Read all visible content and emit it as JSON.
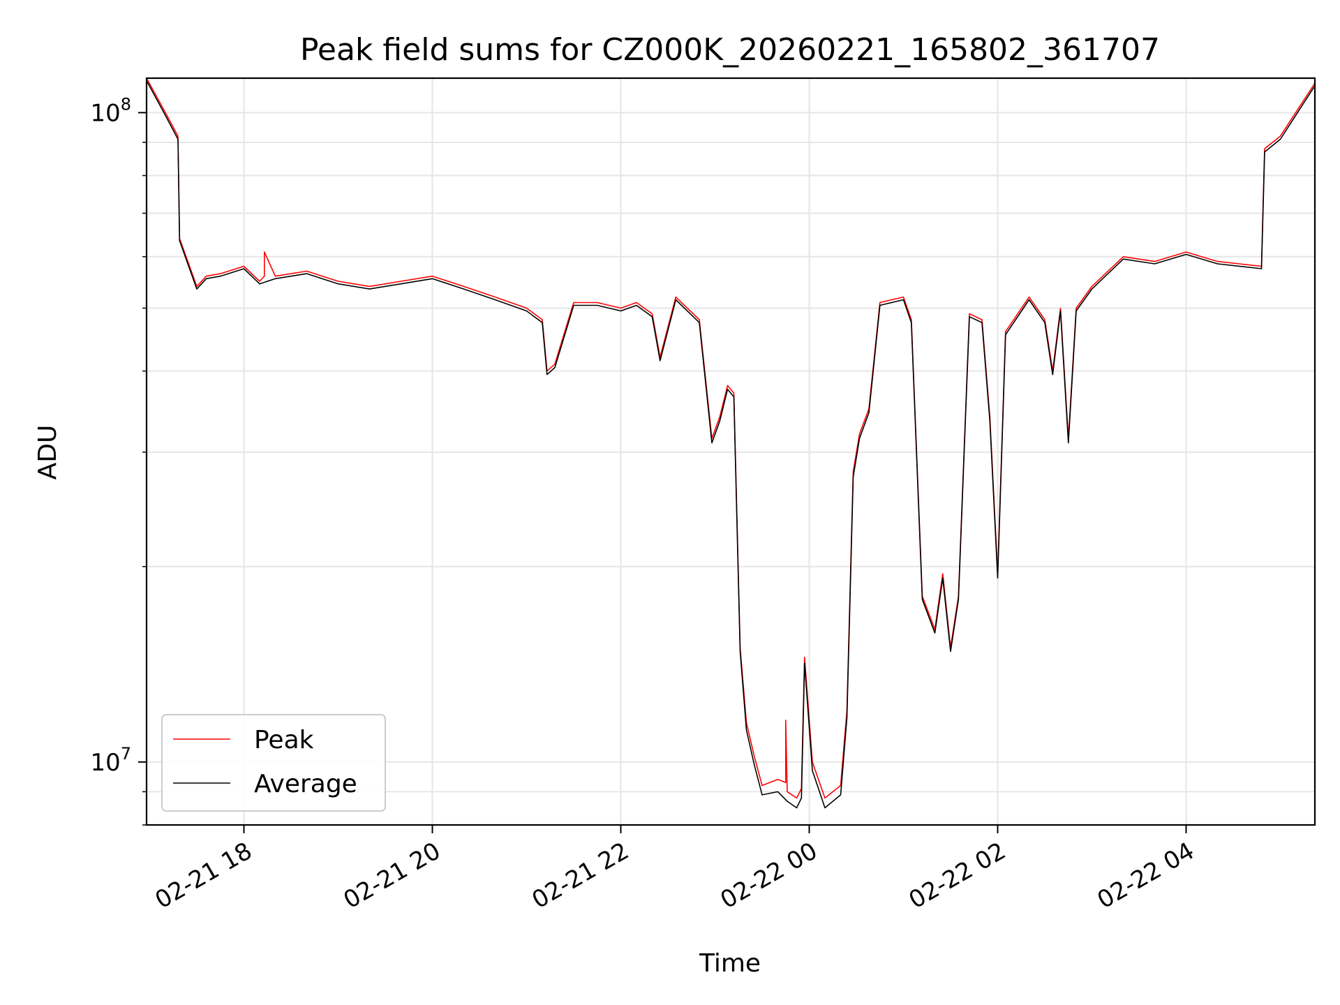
{
  "chart_data": {
    "type": "line",
    "title": "Peak field sums for CZ000K_20260221_165802_361707",
    "xlabel": "Time",
    "ylabel": "ADU",
    "y_scale": "log",
    "ylim": [
      8000000,
      113000000
    ],
    "xlim": [
      "2026-02-21 16:58",
      "2026-02-22 05:22"
    ],
    "x_ticks": [
      {
        "value": "2026-02-21 18:00",
        "label": "02-21 18"
      },
      {
        "value": "2026-02-21 20:00",
        "label": "02-21 20"
      },
      {
        "value": "2026-02-21 22:00",
        "label": "02-21 22"
      },
      {
        "value": "2026-02-22 00:00",
        "label": "02-22 00"
      },
      {
        "value": "2026-02-22 02:00",
        "label": "02-22 02"
      },
      {
        "value": "2026-02-22 04:00",
        "label": "02-22 04"
      }
    ],
    "y_ticks": [
      {
        "value": 10000000,
        "base": "10",
        "exp": "7"
      },
      {
        "value": 100000000,
        "base": "10",
        "exp": "8"
      }
    ],
    "grid": true,
    "legend_position": "bottom-left",
    "series": [
      {
        "name": "Peak",
        "color": "#ff0000",
        "x": [
          "2026-02-21 16:58",
          "2026-02-21 17:10",
          "2026-02-21 17:18",
          "2026-02-21 17:19",
          "2026-02-21 17:30",
          "2026-02-21 17:36",
          "2026-02-21 17:45",
          "2026-02-21 18:00",
          "2026-02-21 18:10",
          "2026-02-21 18:13",
          "2026-02-21 18:13",
          "2026-02-21 18:20",
          "2026-02-21 18:40",
          "2026-02-21 19:00",
          "2026-02-21 19:20",
          "2026-02-21 19:40",
          "2026-02-21 20:00",
          "2026-02-21 20:20",
          "2026-02-21 20:40",
          "2026-02-21 21:00",
          "2026-02-21 21:10",
          "2026-02-21 21:13",
          "2026-02-21 21:18",
          "2026-02-21 21:30",
          "2026-02-21 21:45",
          "2026-02-21 22:00",
          "2026-02-21 22:10",
          "2026-02-21 22:20",
          "2026-02-21 22:25",
          "2026-02-21 22:35",
          "2026-02-21 22:50",
          "2026-02-21 22:58",
          "2026-02-21 23:03",
          "2026-02-21 23:08",
          "2026-02-21 23:12",
          "2026-02-21 23:16",
          "2026-02-21 23:20",
          "2026-02-21 23:25",
          "2026-02-21 23:30",
          "2026-02-21 23:40",
          "2026-02-21 23:45",
          "2026-02-21 23:45",
          "2026-02-21 23:46",
          "2026-02-21 23:52",
          "2026-02-21 23:55",
          "2026-02-21 23:57",
          "2026-02-22 00:02",
          "2026-02-22 00:10",
          "2026-02-22 00:20",
          "2026-02-22 00:24",
          "2026-02-22 00:28",
          "2026-02-22 00:32",
          "2026-02-22 00:38",
          "2026-02-22 00:45",
          "2026-02-22 01:00",
          "2026-02-22 01:05",
          "2026-02-22 01:12",
          "2026-02-22 01:20",
          "2026-02-22 01:25",
          "2026-02-22 01:30",
          "2026-02-22 01:35",
          "2026-02-22 01:42",
          "2026-02-22 01:50",
          "2026-02-22 01:55",
          "2026-02-22 02:00",
          "2026-02-22 02:05",
          "2026-02-22 02:20",
          "2026-02-22 02:30",
          "2026-02-22 02:35",
          "2026-02-22 02:40",
          "2026-02-22 02:45",
          "2026-02-22 02:50",
          "2026-02-22 03:00",
          "2026-02-22 03:20",
          "2026-02-22 03:40",
          "2026-02-22 04:00",
          "2026-02-22 04:20",
          "2026-02-22 04:48",
          "2026-02-22 04:50",
          "2026-02-22 05:00",
          "2026-02-22 05:22"
        ],
        "y": [
          113000000,
          100000000,
          92000000,
          64000000,
          54000000,
          56000000,
          56500000,
          58000000,
          55000000,
          56000000,
          61000000,
          56000000,
          57000000,
          55000000,
          54000000,
          55000000,
          56000000,
          54000000,
          52000000,
          50000000,
          48000000,
          40000000,
          41000000,
          51000000,
          51000000,
          50000000,
          51000000,
          49000000,
          42000000,
          52000000,
          48000000,
          31500000,
          34000000,
          38000000,
          37000000,
          15000000,
          11500000,
          10200000,
          9200000,
          9400000,
          9300000,
          11600000,
          9000000,
          8800000,
          9100000,
          14500000,
          10000000,
          8800000,
          9200000,
          12000000,
          28000000,
          32000000,
          35000000,
          51000000,
          52000000,
          48000000,
          18000000,
          16000000,
          19500000,
          15000000,
          18000000,
          49000000,
          48000000,
          34000000,
          19500000,
          46000000,
          52000000,
          48000000,
          40000000,
          50000000,
          31500000,
          50000000,
          54000000,
          60000000,
          59000000,
          61000000,
          59000000,
          58000000,
          88000000,
          92000000,
          111000000
        ]
      },
      {
        "name": "Average",
        "color": "#000000",
        "x": [
          "2026-02-21 16:58",
          "2026-02-21 17:10",
          "2026-02-21 17:18",
          "2026-02-21 17:19",
          "2026-02-21 17:30",
          "2026-02-21 17:36",
          "2026-02-21 17:45",
          "2026-02-21 18:00",
          "2026-02-21 18:10",
          "2026-02-21 18:20",
          "2026-02-21 18:40",
          "2026-02-21 19:00",
          "2026-02-21 19:20",
          "2026-02-21 19:40",
          "2026-02-21 20:00",
          "2026-02-21 20:20",
          "2026-02-21 20:40",
          "2026-02-21 21:00",
          "2026-02-21 21:10",
          "2026-02-21 21:13",
          "2026-02-21 21:18",
          "2026-02-21 21:30",
          "2026-02-21 21:45",
          "2026-02-21 22:00",
          "2026-02-21 22:10",
          "2026-02-21 22:20",
          "2026-02-21 22:25",
          "2026-02-21 22:35",
          "2026-02-21 22:50",
          "2026-02-21 22:58",
          "2026-02-21 23:03",
          "2026-02-21 23:08",
          "2026-02-21 23:12",
          "2026-02-21 23:16",
          "2026-02-21 23:20",
          "2026-02-21 23:25",
          "2026-02-21 23:30",
          "2026-02-21 23:40",
          "2026-02-21 23:46",
          "2026-02-21 23:52",
          "2026-02-21 23:55",
          "2026-02-21 23:57",
          "2026-02-22 00:02",
          "2026-02-22 00:10",
          "2026-02-22 00:20",
          "2026-02-22 00:24",
          "2026-02-22 00:28",
          "2026-02-22 00:32",
          "2026-02-22 00:38",
          "2026-02-22 00:45",
          "2026-02-22 01:00",
          "2026-02-22 01:05",
          "2026-02-22 01:12",
          "2026-02-22 01:20",
          "2026-02-22 01:25",
          "2026-02-22 01:30",
          "2026-02-22 01:35",
          "2026-02-22 01:42",
          "2026-02-22 01:50",
          "2026-02-22 01:55",
          "2026-02-22 02:00",
          "2026-02-22 02:05",
          "2026-02-22 02:20",
          "2026-02-22 02:30",
          "2026-02-22 02:35",
          "2026-02-22 02:40",
          "2026-02-22 02:45",
          "2026-02-22 02:50",
          "2026-02-22 03:00",
          "2026-02-22 03:20",
          "2026-02-22 03:40",
          "2026-02-22 04:00",
          "2026-02-22 04:20",
          "2026-02-22 04:48",
          "2026-02-22 04:50",
          "2026-02-22 05:00",
          "2026-02-22 05:22"
        ],
        "y": [
          112000000,
          99000000,
          91000000,
          63500000,
          53500000,
          55500000,
          56000000,
          57500000,
          54500000,
          55500000,
          56500000,
          54500000,
          53500000,
          54500000,
          55500000,
          53500000,
          51500000,
          49500000,
          47500000,
          39500000,
          40500000,
          50500000,
          50500000,
          49500000,
          50500000,
          48500000,
          41500000,
          51500000,
          47500000,
          31000000,
          33500000,
          37500000,
          36500000,
          14800000,
          11200000,
          9900000,
          8900000,
          9000000,
          8700000,
          8500000,
          8800000,
          14200000,
          9700000,
          8500000,
          8900000,
          11700000,
          27500000,
          31500000,
          34500000,
          50500000,
          51500000,
          47500000,
          17800000,
          15800000,
          19200000,
          14800000,
          17800000,
          48500000,
          47500000,
          33500000,
          19200000,
          45500000,
          51500000,
          47500000,
          39500000,
          49500000,
          31000000,
          49500000,
          53500000,
          59500000,
          58500000,
          60500000,
          58500000,
          57500000,
          87000000,
          91000000,
          110000000
        ]
      }
    ]
  }
}
